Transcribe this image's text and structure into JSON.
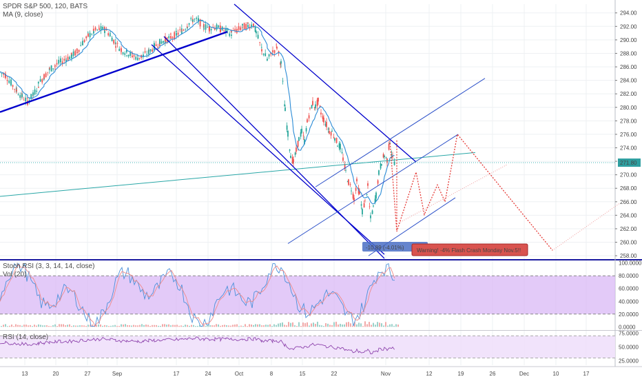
{
  "chart_data": {
    "type": "candlestick",
    "legend": {
      "title": "SPDR S&P 500, 120, BATS",
      "ma": "MA (9, close)",
      "stoch": "Stoch RSI (3, 3, 14, 14, close)",
      "vol": "Vol (20)",
      "rsi": "RSI (14, close)"
    },
    "price_axis": {
      "ticks": [
        "294.00",
        "292.00",
        "290.00",
        "288.00",
        "286.00",
        "284.00",
        "282.00",
        "280.00",
        "278.00",
        "276.00",
        "274.00",
        "272.00",
        "270.00",
        "268.00",
        "266.00",
        "264.00",
        "262.00",
        "260.00",
        "258.00"
      ],
      "ylim": [
        257.5,
        295.3
      ],
      "last_price": "271.80"
    },
    "stoch_axis": {
      "ticks": [
        "100.0000",
        "80.0000",
        "60.0000",
        "40.0000",
        "20.0000",
        "0.0000"
      ],
      "ylim": [
        -4,
        104
      ]
    },
    "rsi_axis": {
      "ticks": [
        "75.0000",
        "50.0000",
        "25.0000"
      ],
      "ylim": [
        17,
        78
      ]
    },
    "x_axis": {
      "ticks": [
        "13",
        "20",
        "27",
        "Sep",
        "17",
        "24",
        "Oct",
        "8",
        "15",
        "22",
        "Nov",
        "12",
        "19",
        "26",
        "Dec",
        "10",
        "17"
      ]
    },
    "annotations": {
      "measure": "-10.89 (-4.01%)",
      "warning": "Warning! -4% Flash Crash Monday Nov.5!!"
    },
    "colors": {
      "up": "#26a69a",
      "down": "#ef5350",
      "ma": "#2a8bd6",
      "channel": "#0000cc",
      "trend_light": "#2a4fc8",
      "forecast": "#e53935",
      "stoch_fill": "#d9b8f5",
      "rsi_fill": "#efe0fb",
      "rsi_line": "#8e44ad",
      "last_price": "#2f9fa0"
    },
    "price_path": [
      [
        0,
        285.2
      ],
      [
        8,
        284.8
      ],
      [
        16,
        283.6
      ],
      [
        24,
        282.5
      ],
      [
        32,
        281.6
      ],
      [
        40,
        280.9
      ],
      [
        48,
        281.8
      ],
      [
        56,
        283.4
      ],
      [
        64,
        284.6
      ],
      [
        72,
        285.6
      ],
      [
        80,
        286.2
      ],
      [
        88,
        286.7
      ],
      [
        96,
        287.2
      ],
      [
        104,
        287.6
      ],
      [
        112,
        288.3
      ],
      [
        120,
        289.6
      ],
      [
        128,
        290.6
      ],
      [
        136,
        291.2
      ],
      [
        144,
        291.6
      ],
      [
        152,
        291.5
      ],
      [
        160,
        290.8
      ],
      [
        168,
        289.4
      ],
      [
        176,
        288.6
      ],
      [
        184,
        288.1
      ],
      [
        192,
        287.7
      ],
      [
        200,
        287.4
      ],
      [
        208,
        287.6
      ],
      [
        216,
        288.2
      ],
      [
        224,
        289.0
      ],
      [
        232,
        289.6
      ],
      [
        240,
        290.0
      ],
      [
        248,
        290.4
      ],
      [
        256,
        290.8
      ],
      [
        264,
        291.4
      ],
      [
        272,
        292.2
      ],
      [
        280,
        293.0
      ],
      [
        288,
        292.8
      ],
      [
        296,
        292.0
      ],
      [
        304,
        291.8
      ],
      [
        312,
        291.9
      ],
      [
        320,
        291.6
      ],
      [
        328,
        291.3
      ],
      [
        336,
        291.0
      ],
      [
        344,
        291.4
      ],
      [
        352,
        291.9
      ],
      [
        360,
        292.1
      ],
      [
        368,
        292.3
      ],
      [
        372,
        291.0
      ],
      [
        380,
        288.6
      ],
      [
        388,
        287.0
      ],
      [
        396,
        288.2
      ],
      [
        402,
        289.0
      ],
      [
        408,
        286.5
      ],
      [
        414,
        279.5
      ],
      [
        418,
        276.0
      ],
      [
        422,
        273.0
      ],
      [
        426,
        271.8
      ],
      [
        430,
        273.5
      ],
      [
        434,
        275.3
      ],
      [
        438,
        276.4
      ],
      [
        442,
        275.0
      ],
      [
        446,
        277.8
      ],
      [
        450,
        279.5
      ],
      [
        454,
        280.6
      ],
      [
        458,
        280.1
      ],
      [
        462,
        280.9
      ],
      [
        466,
        279.2
      ],
      [
        470,
        278.2
      ],
      [
        474,
        277.4
      ],
      [
        478,
        276.5
      ],
      [
        482,
        276.3
      ],
      [
        486,
        275.6
      ],
      [
        490,
        274.6
      ],
      [
        494,
        274.1
      ],
      [
        498,
        272.4
      ],
      [
        502,
        270.4
      ],
      [
        506,
        268.9
      ],
      [
        510,
        268.0
      ],
      [
        514,
        266.5
      ],
      [
        518,
        268.9
      ],
      [
        522,
        267.1
      ],
      [
        526,
        264.6
      ],
      [
        530,
        266.0
      ],
      [
        534,
        268.2
      ],
      [
        538,
        263.5
      ],
      [
        542,
        265.1
      ],
      [
        546,
        267.0
      ],
      [
        550,
        270.2
      ],
      [
        554,
        271.9
      ],
      [
        558,
        272.9
      ],
      [
        562,
        272.2
      ],
      [
        566,
        275.1
      ],
      [
        570,
        272.3
      ],
      [
        574,
        271.8
      ]
    ]
  }
}
